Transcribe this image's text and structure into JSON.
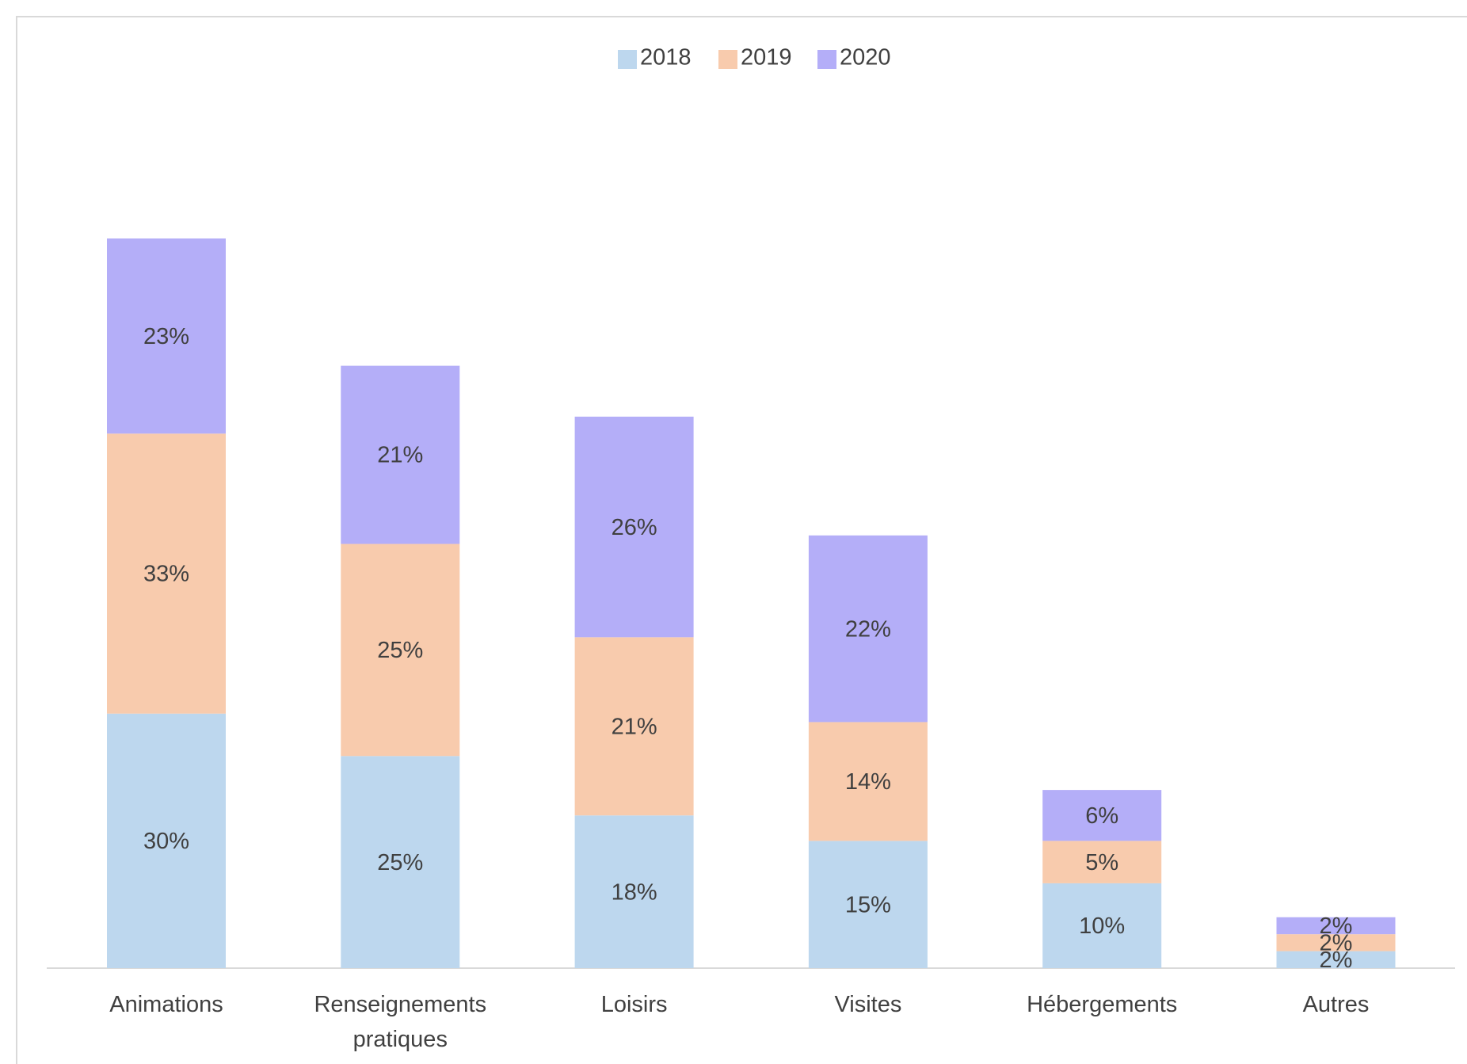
{
  "chart_data": {
    "type": "stacked_bar",
    "categories": [
      "Animations",
      "Renseignements pratiques",
      "Loisirs",
      "Visites",
      "Hébergements",
      "Autres"
    ],
    "series": [
      {
        "name": "2018",
        "color": "#bdd7ee",
        "values": [
          30,
          25,
          18,
          15,
          10,
          2
        ],
        "value_labels": [
          "30%",
          "25%",
          "18%",
          "15%",
          "10%",
          "2%"
        ]
      },
      {
        "name": "2019",
        "color": "#f8cbad",
        "values": [
          33,
          25,
          21,
          14,
          5,
          2
        ],
        "value_labels": [
          "33%",
          "25%",
          "21%",
          "14%",
          "5%",
          "2%"
        ]
      },
      {
        "name": "2020",
        "color": "#b4aef8",
        "values": [
          23,
          21,
          26,
          22,
          6,
          2
        ],
        "value_labels": [
          "23%",
          "21%",
          "26%",
          "22%",
          "6%",
          "2%"
        ]
      }
    ],
    "legend": "top"
  }
}
